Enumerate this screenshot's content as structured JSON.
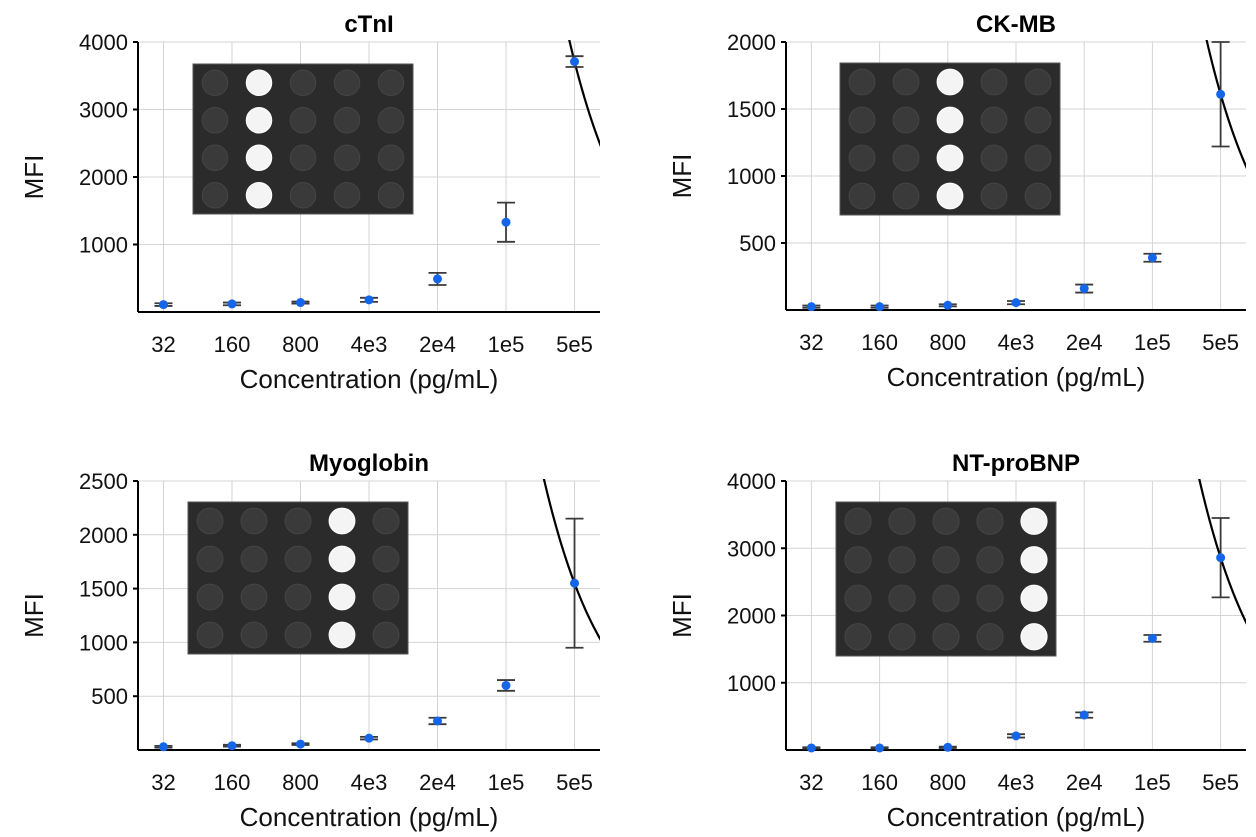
{
  "chart_data": [
    {
      "type": "scatter",
      "title": "cTnI",
      "xlabel": "Concentration (pg/mL)",
      "ylabel": "MFI",
      "x_scale": "log",
      "categories": [
        "32",
        "160",
        "800",
        "4e3",
        "2e4",
        "1e5",
        "5e5"
      ],
      "x": [
        32,
        160,
        800,
        4000,
        20000,
        100000,
        500000
      ],
      "ylim": [
        0,
        4000
      ],
      "yticks": [
        1000,
        2000,
        3000,
        4000
      ],
      "series": [
        {
          "values": [
            110,
            120,
            140,
            180,
            490,
            1330,
            3710
          ],
          "error": [
            20,
            20,
            15,
            30,
            90,
            290,
            80
          ]
        }
      ],
      "fit_curve": true,
      "grid": true,
      "inset": "well-array-image"
    },
    {
      "type": "scatter",
      "title": "CK-MB",
      "xlabel": "Concentration (pg/mL)",
      "ylabel": "MFI",
      "x_scale": "log",
      "categories": [
        "32",
        "160",
        "800",
        "4e3",
        "2e4",
        "1e5",
        "5e5"
      ],
      "x": [
        32,
        160,
        800,
        4000,
        20000,
        100000,
        500000
      ],
      "ylim": [
        0,
        2000
      ],
      "yticks": [
        500,
        1000,
        1500,
        2000
      ],
      "series": [
        {
          "values": [
            25,
            25,
            35,
            55,
            160,
            390,
            1610
          ],
          "error": [
            8,
            8,
            8,
            12,
            30,
            30,
            390
          ]
        }
      ],
      "fit_curve": true,
      "grid": true,
      "inset": "well-array-image"
    },
    {
      "type": "scatter",
      "title": "Myoglobin",
      "xlabel": "Concentration (pg/mL)",
      "ylabel": "MFI",
      "x_scale": "log",
      "categories": [
        "32",
        "160",
        "800",
        "4e3",
        "2e4",
        "1e5",
        "5e5"
      ],
      "x": [
        32,
        160,
        800,
        4000,
        20000,
        100000,
        500000
      ],
      "ylim": [
        0,
        2500
      ],
      "yticks": [
        500,
        1000,
        1500,
        2000,
        2500
      ],
      "series": [
        {
          "values": [
            30,
            40,
            55,
            110,
            270,
            600,
            1550
          ],
          "error": [
            8,
            8,
            8,
            12,
            30,
            50,
            600
          ]
        }
      ],
      "fit_curve": true,
      "grid": true,
      "inset": "well-array-image"
    },
    {
      "type": "scatter",
      "title": "NT-proBNP",
      "xlabel": "Concentration (pg/mL)",
      "ylabel": "MFI",
      "x_scale": "log",
      "categories": [
        "32",
        "160",
        "800",
        "4e3",
        "2e4",
        "1e5",
        "5e5"
      ],
      "x": [
        32,
        160,
        800,
        4000,
        20000,
        100000,
        500000
      ],
      "ylim": [
        0,
        4000
      ],
      "yticks": [
        1000,
        2000,
        3000,
        4000
      ],
      "series": [
        {
          "values": [
            30,
            30,
            40,
            210,
            520,
            1660,
            2860
          ],
          "error": [
            10,
            10,
            10,
            25,
            40,
            50,
            590
          ]
        }
      ],
      "fit_curve": true,
      "grid": true,
      "inset": "well-array-image"
    }
  ]
}
